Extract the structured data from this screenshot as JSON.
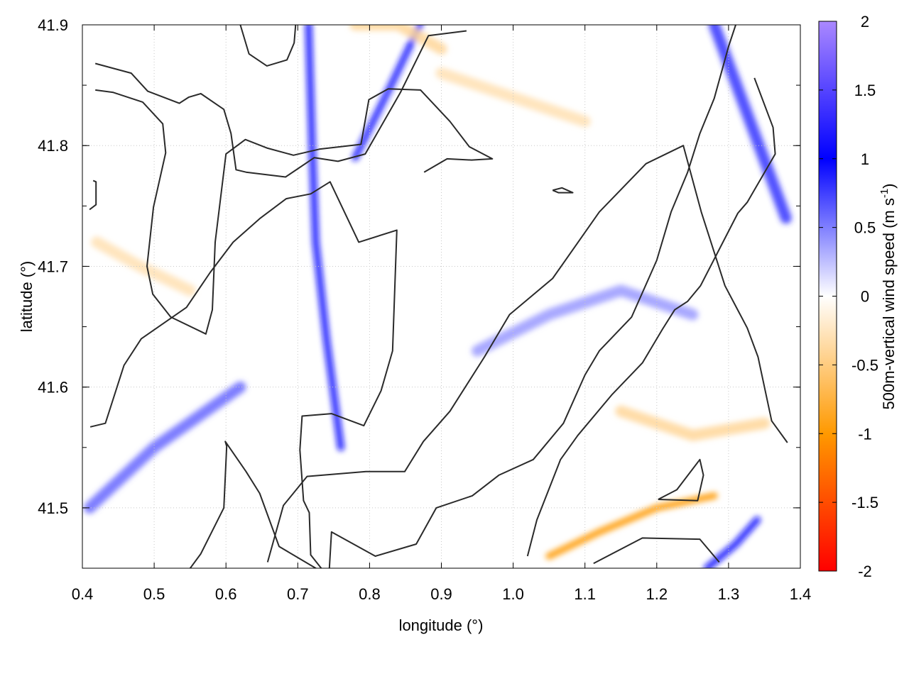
{
  "chart_data": {
    "type": "heatmap",
    "xlabel": "longitude (°)",
    "ylabel": "latitude (°)",
    "colorbar_label_main": "500m-vertical wind speed (m s",
    "colorbar_label_sup": "-1",
    "colorbar_label_close": ")",
    "xlim": [
      0.4,
      1.4
    ],
    "ylim": [
      41.45,
      41.9
    ],
    "xticks": [
      0.4,
      0.5,
      0.6,
      0.7,
      0.8,
      0.9,
      1.0,
      1.1,
      1.2,
      1.3,
      1.4
    ],
    "xtick_labels": [
      "0.4",
      "0.5",
      "0.6",
      "0.7",
      "0.8",
      "0.9",
      "1.0",
      "1.1",
      "1.2",
      "1.3",
      "1.4"
    ],
    "yticks": [
      41.5,
      41.6,
      41.7,
      41.8,
      41.9
    ],
    "ytick_labels": [
      "41.5",
      "41.6",
      "41.7",
      "41.8",
      "41.9"
    ],
    "clim": [
      -2,
      2
    ],
    "cticks": [
      2,
      1.5,
      1,
      0.5,
      0,
      -0.5,
      -1,
      -1.5,
      -2
    ],
    "ctick_labels": [
      "2",
      "1.5",
      "1",
      "0.5",
      "0",
      "-0.5",
      "-1",
      "-1.5",
      "-2"
    ],
    "colormap": [
      {
        "value": -2,
        "color": "#ff0000"
      },
      {
        "value": -1,
        "color": "#ff9900"
      },
      {
        "value": 0,
        "color": "#ffffff"
      },
      {
        "value": 1,
        "color": "#0000ff"
      },
      {
        "value": 2,
        "color": "#aa88ff"
      }
    ],
    "grid": true,
    "features": [
      {
        "name": "updraft-band",
        "lon": [
          0.715,
          0.72,
          0.725,
          0.74,
          0.76
        ],
        "lat": [
          41.9,
          41.8,
          41.72,
          41.64,
          41.55
        ],
        "value": 1.1
      },
      {
        "name": "updraft-band",
        "lon": [
          0.78,
          0.83,
          0.87
        ],
        "lat": [
          41.79,
          41.85,
          41.9
        ],
        "value": 0.9
      },
      {
        "name": "updraft-band",
        "lon": [
          0.41,
          0.5,
          0.62
        ],
        "lat": [
          41.5,
          41.55,
          41.6
        ],
        "value": 0.6
      },
      {
        "name": "updraft-band",
        "lon": [
          1.28,
          1.33,
          1.38
        ],
        "lat": [
          41.9,
          41.82,
          41.74
        ],
        "value": 0.8
      },
      {
        "name": "updraft-band",
        "lon": [
          1.27,
          1.31,
          1.34
        ],
        "lat": [
          41.45,
          41.47,
          41.49
        ],
        "value": 1.1
      },
      {
        "name": "updraft-band",
        "lon": [
          0.95,
          1.05,
          1.15,
          1.25
        ],
        "lat": [
          41.63,
          41.66,
          41.68,
          41.66
        ],
        "value": 0.4
      },
      {
        "name": "downdraft-band",
        "lon": [
          1.05,
          1.12,
          1.2,
          1.28
        ],
        "lat": [
          41.46,
          41.48,
          41.5,
          41.51
        ],
        "value": -1.0
      },
      {
        "name": "downdraft-band",
        "lon": [
          0.9,
          1.0,
          1.1
        ],
        "lat": [
          41.86,
          41.84,
          41.82
        ],
        "value": -0.3
      },
      {
        "name": "downdraft-band",
        "lon": [
          1.15,
          1.25,
          1.35
        ],
        "lat": [
          41.58,
          41.56,
          41.57
        ],
        "value": -0.4
      },
      {
        "name": "downdraft-band",
        "lon": [
          0.42,
          0.48,
          0.55
        ],
        "lat": [
          41.72,
          41.7,
          41.68
        ],
        "value": -0.3
      },
      {
        "name": "downdraft-band",
        "lon": [
          0.78,
          0.84,
          0.9
        ],
        "lat": [
          41.9,
          41.9,
          41.88
        ],
        "value": -0.4
      }
    ],
    "contours": [
      {
        "lon": [
          0.418,
          0.468,
          0.491,
          0.535,
          0.548,
          0.565,
          0.597,
          0.607,
          0.614,
          0.628,
          0.683,
          0.723,
          0.756,
          0.794,
          0.843,
          0.882,
          0.935
        ],
        "lat": [
          41.868,
          41.86,
          41.845,
          41.835,
          41.84,
          41.843,
          41.83,
          41.81,
          41.78,
          41.778,
          41.774,
          41.79,
          41.787,
          41.793,
          41.844,
          41.891,
          41.895
        ]
      },
      {
        "lon": [
          0.418,
          0.443,
          0.484,
          0.512,
          0.516,
          0.499,
          0.49,
          0.498,
          0.523,
          0.572,
          0.581,
          0.585,
          0.6,
          0.627,
          0.657,
          0.694,
          0.73,
          0.788,
          0.799,
          0.826,
          0.871,
          0.912,
          0.939,
          0.971,
          0.942,
          0.908,
          0.876
        ],
        "lat": [
          41.846,
          41.844,
          41.836,
          41.818,
          41.794,
          41.749,
          41.7,
          41.677,
          41.658,
          41.644,
          41.664,
          41.72,
          41.793,
          41.805,
          41.798,
          41.792,
          41.797,
          41.801,
          41.838,
          41.847,
          41.846,
          41.82,
          41.799,
          41.789,
          41.788,
          41.789,
          41.778
        ]
      },
      {
        "lon": [
          0.411,
          0.432,
          0.458,
          0.482,
          0.545,
          0.578,
          0.61,
          0.648,
          0.684,
          0.718,
          0.745,
          0.785,
          0.838,
          0.832,
          0.816,
          0.792,
          0.747,
          0.706,
          0.703,
          0.708,
          0.716,
          0.718,
          0.742,
          0.725,
          0.674,
          0.647,
          0.628,
          0.599,
          0.601,
          0.597,
          0.565,
          0.518
        ],
        "lat": [
          41.567,
          41.57,
          41.618,
          41.64,
          41.666,
          41.695,
          41.72,
          41.74,
          41.756,
          41.76,
          41.77,
          41.72,
          41.73,
          41.63,
          41.597,
          41.568,
          41.578,
          41.576,
          41.548,
          41.506,
          41.496,
          41.461,
          41.443,
          41.45,
          41.468,
          41.512,
          41.53,
          41.555,
          41.551,
          41.5,
          41.462,
          41.424
        ]
      },
      {
        "lon": [
          0.658,
          0.68,
          0.713,
          0.795,
          0.849,
          0.875,
          0.912,
          0.96,
          0.995,
          1.055,
          1.12,
          1.185,
          1.237,
          1.262,
          1.295,
          1.326,
          1.341,
          1.36,
          1.382
        ],
        "lat": [
          41.455,
          41.502,
          41.526,
          41.53,
          41.53,
          41.555,
          41.58,
          41.625,
          41.66,
          41.69,
          41.745,
          41.785,
          41.8,
          41.745,
          41.684,
          41.649,
          41.625,
          41.572,
          41.554
        ]
      },
      {
        "lon": [
          1.02,
          1.033,
          1.066,
          1.09,
          1.138,
          1.18,
          1.208,
          1.225,
          1.243,
          1.261,
          1.313,
          1.326,
          1.365,
          1.362,
          1.336
        ],
        "lat": [
          41.46,
          41.49,
          41.54,
          41.56,
          41.594,
          41.62,
          41.648,
          41.664,
          41.671,
          41.684,
          41.744,
          41.753,
          41.793,
          41.815,
          41.856
        ]
      },
      {
        "lon": [
          0.744,
          0.747,
          0.808,
          0.865,
          0.893,
          0.943,
          0.98,
          1.028,
          1.07,
          1.1,
          1.12,
          1.165,
          1.2,
          1.22,
          1.243,
          1.26,
          1.28,
          1.3,
          1.31
        ],
        "lat": [
          41.45,
          41.48,
          41.46,
          41.47,
          41.5,
          41.51,
          41.527,
          41.54,
          41.57,
          41.61,
          41.63,
          41.658,
          41.705,
          41.745,
          41.778,
          41.81,
          41.839,
          41.882,
          41.9
        ]
      },
      {
        "lon": [
          1.112,
          1.18,
          1.26,
          1.287
        ],
        "lat": [
          41.454,
          41.475,
          41.474,
          41.455
        ]
      },
      {
        "lon": [
          1.202,
          1.228,
          1.26,
          1.265,
          1.257,
          1.202
        ],
        "lat": [
          41.507,
          41.515,
          41.54,
          41.527,
          41.506,
          41.507
        ]
      },
      {
        "lon": [
          1.055,
          1.068,
          1.083,
          1.063,
          1.055
        ],
        "lat": [
          41.763,
          41.765,
          41.761,
          41.761,
          41.763
        ]
      },
      {
        "lon": [
          0.415,
          0.419,
          0.419,
          0.41
        ],
        "lat": [
          41.771,
          41.77,
          41.751,
          41.747
        ]
      },
      {
        "lon": [
          0.62,
          0.632,
          0.657,
          0.685,
          0.695,
          0.697
        ],
        "lat": [
          41.9,
          41.876,
          41.866,
          41.871,
          41.885,
          41.9
        ]
      }
    ]
  }
}
